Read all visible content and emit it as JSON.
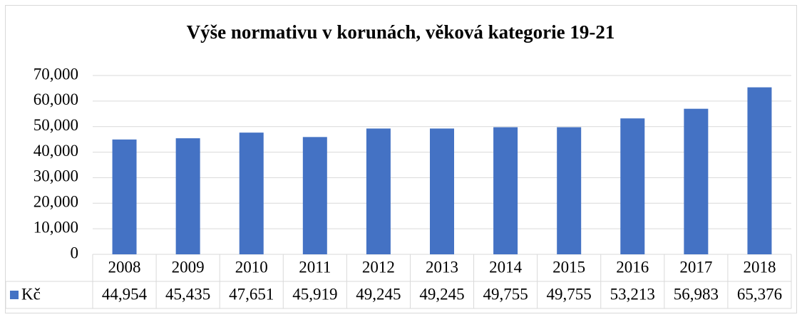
{
  "chart_data": {
    "type": "bar",
    "title": "Výše normativu v korunách, věková kategorie 19-21",
    "categories": [
      "2008",
      "2009",
      "2010",
      "2011",
      "2012",
      "2013",
      "2014",
      "2015",
      "2016",
      "2017",
      "2018"
    ],
    "series": [
      {
        "name": "Kč",
        "color": "#4472c4",
        "values": [
          44954,
          45435,
          47651,
          45919,
          49245,
          49245,
          49755,
          49755,
          53213,
          56983,
          65376
        ],
        "value_labels": [
          "44,954",
          "45,435",
          "47,651",
          "45,919",
          "49,245",
          "49,245",
          "49,755",
          "49,755",
          "53,213",
          "56,983",
          "65,376"
        ]
      }
    ],
    "ylim": [
      0,
      70000
    ],
    "yticks": [
      0,
      {
        "value": 10000,
        "label": "10,000"
      },
      {
        "value": 20000,
        "label": "20,000"
      },
      {
        "value": 30000,
        "label": "30,000"
      },
      {
        "value": 40000,
        "label": "40,000"
      },
      {
        "value": 50000,
        "label": "50,000"
      },
      {
        "value": 60000,
        "label": "60,000"
      },
      {
        "value": 70000,
        "label": "70,000"
      }
    ],
    "grid": true,
    "legend": "table"
  }
}
